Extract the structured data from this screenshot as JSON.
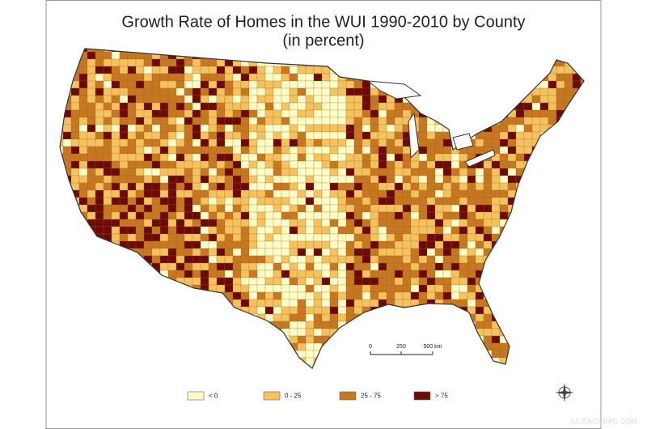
{
  "title": "Growth Rate of Homes in the WUI 1990-2010 by County",
  "subtitle": "(in percent)",
  "legend": [
    {
      "label": "< 0",
      "color": "#fffcc6"
    },
    {
      "label": "0 - 25",
      "color": "#f6c25c"
    },
    {
      "label": "25 - 75",
      "color": "#c8771f"
    },
    {
      "label": "> 75",
      "color": "#6e0a06"
    }
  ],
  "scale_bar": {
    "labels": [
      "0",
      "250",
      "500 km"
    ]
  },
  "watermark": "SCIENCEBAG.COM"
}
